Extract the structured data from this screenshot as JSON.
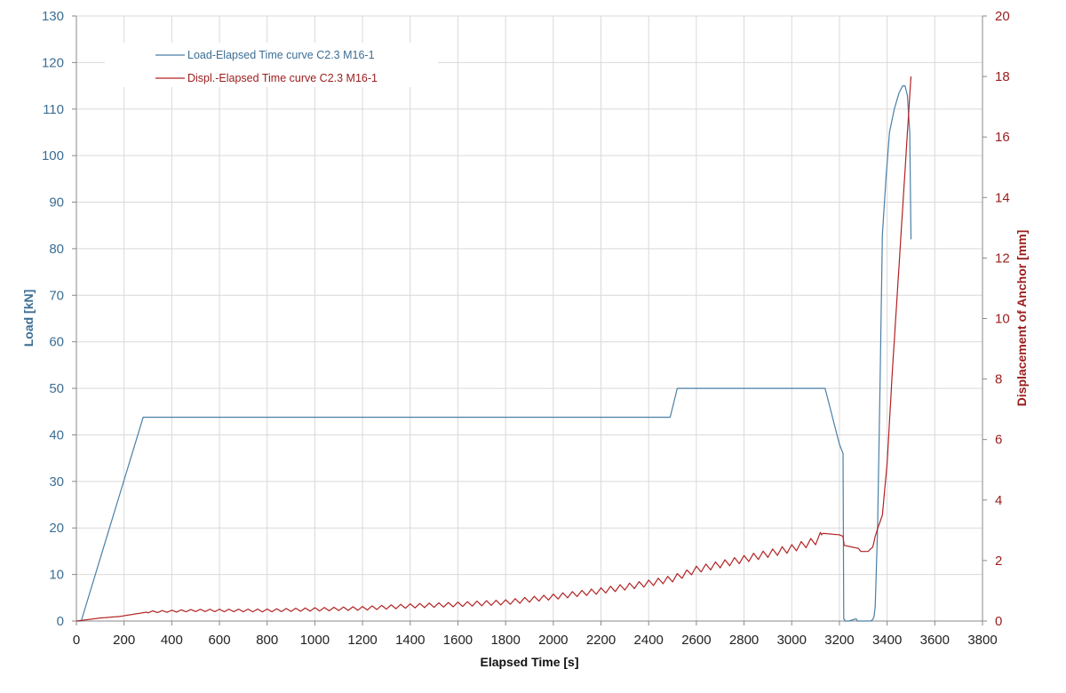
{
  "chart_data": {
    "type": "line",
    "xlabel": "Elapsed Time [s]",
    "ylabel_left": "Load [kN]",
    "ylabel_right": "Displacement of Anchor [mm]",
    "xlim": [
      0,
      3800
    ],
    "ylim_left": [
      0,
      130
    ],
    "ylim_right": [
      0,
      20
    ],
    "x_ticks": [
      "0",
      "200",
      "400",
      "600",
      "800",
      "1000",
      "1200",
      "1400",
      "1600",
      "1800",
      "2000",
      "2200",
      "2400",
      "2600",
      "2800",
      "3000",
      "3200",
      "3400",
      "3600",
      "3800"
    ],
    "y_left_ticks": [
      "0",
      "10",
      "20",
      "30",
      "40",
      "50",
      "60",
      "70",
      "80",
      "90",
      "100",
      "110",
      "120",
      "130"
    ],
    "y_right_ticks": [
      "0",
      "2",
      "4",
      "6",
      "8",
      "10",
      "12",
      "14",
      "16",
      "18",
      "20"
    ],
    "grid": true,
    "legend_position": "top-left",
    "colors": {
      "load": "#4a7fa6",
      "displacement": "#b22222",
      "left_axis": "#3b6e94",
      "right_axis": "#9b1c1c",
      "grid": "#d9d9d9"
    },
    "series": [
      {
        "name": "Load-Elapsed Time curve C2.3 M16-1",
        "axis": "left",
        "x": [
          0,
          20,
          280,
          2490,
          2520,
          3140,
          3200,
          3215,
          3218,
          3225,
          3240,
          3270,
          3275,
          3330,
          3340,
          3345,
          3350,
          3360,
          3370,
          3380,
          3395,
          3410,
          3430,
          3450,
          3465,
          3475,
          3485,
          3495,
          3500
        ],
        "y": [
          0,
          0,
          43.8,
          43.8,
          50,
          50,
          38,
          36,
          0.5,
          0,
          0,
          0.5,
          0,
          0,
          0.3,
          1,
          3,
          20,
          50,
          83,
          95,
          105,
          110,
          113.5,
          115,
          115,
          113,
          105,
          82
        ]
      },
      {
        "name": "Displ.-Elapsed Time curve C2.3 M16-1",
        "axis": "right",
        "x": [
          0,
          100,
          180,
          260,
          300,
          500,
          800,
          1200,
          1400,
          1600,
          1800,
          2000,
          2200,
          2400,
          2500,
          2600,
          2800,
          3000,
          3100,
          3120,
          3130,
          3200,
          3215,
          3220,
          3250,
          3280,
          3290,
          3320,
          3340,
          3350,
          3360,
          3380,
          3400,
          3420,
          3440,
          3460,
          3480,
          3500
        ],
        "y": [
          0,
          0.1,
          0.15,
          0.25,
          0.3,
          0.35,
          0.35,
          0.42,
          0.5,
          0.55,
          0.62,
          0.8,
          1.0,
          1.25,
          1.4,
          1.7,
          2.05,
          2.4,
          2.65,
          2.8,
          2.9,
          2.85,
          2.8,
          2.5,
          2.45,
          2.4,
          2.3,
          2.3,
          2.45,
          2.8,
          3.05,
          3.5,
          5.2,
          8.0,
          10.5,
          13.0,
          15.5,
          18.0
        ]
      }
    ]
  }
}
